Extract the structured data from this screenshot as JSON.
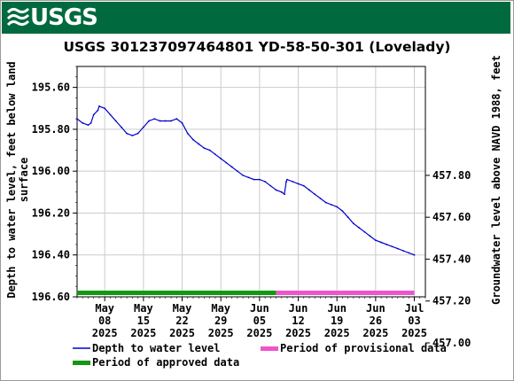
{
  "header": {
    "logo_text": "USGS",
    "logo_icon": "usgs-wave-icon",
    "banner_color": "#006a3e"
  },
  "chart_data": {
    "type": "line",
    "title": "USGS 301237097464801 YD-58-50-301 (Lovelady)",
    "ylabel_left": [
      "Depth to water level, feet below land",
      "surface"
    ],
    "ylabel_right": "Groundwater level above NAVD 1988, feet",
    "y_left_lim": [
      196.6,
      195.5
    ],
    "y_left_ticks": [
      "195.60",
      "195.80",
      "196.00",
      "196.20",
      "196.40",
      "196.60"
    ],
    "y_right_ticks": [
      "457.80",
      "457.60",
      "457.40",
      "457.20",
      "457.00"
    ],
    "x_ticks": [
      {
        "month": "May",
        "day": "08",
        "year": "2025"
      },
      {
        "month": "May",
        "day": "15",
        "year": "2025"
      },
      {
        "month": "May",
        "day": "22",
        "year": "2025"
      },
      {
        "month": "May",
        "day": "29",
        "year": "2025"
      },
      {
        "month": "Jun",
        "day": "05",
        "year": "2025"
      },
      {
        "month": "Jun",
        "day": "12",
        "year": "2025"
      },
      {
        "month": "Jun",
        "day": "19",
        "year": "2025"
      },
      {
        "month": "Jun",
        "day": "26",
        "year": "2025"
      },
      {
        "month": "Jul",
        "day": "03",
        "year": "2025"
      }
    ],
    "x_range": [
      "2025-05-03",
      "2025-07-05"
    ],
    "series": [
      {
        "name": "Depth to water level",
        "color": "#0000cc",
        "points": [
          [
            "2025-05-03",
            195.75
          ],
          [
            "2025-05-04",
            195.77
          ],
          [
            "2025-05-05",
            195.78
          ],
          [
            "2025-05-05T12",
            195.77
          ],
          [
            "2025-05-06",
            195.73
          ],
          [
            "2025-05-06T18",
            195.71
          ],
          [
            "2025-05-07",
            195.69
          ],
          [
            "2025-05-08",
            195.7
          ],
          [
            "2025-05-09",
            195.73
          ],
          [
            "2025-05-10",
            195.76
          ],
          [
            "2025-05-11",
            195.79
          ],
          [
            "2025-05-12",
            195.82
          ],
          [
            "2025-05-13",
            195.83
          ],
          [
            "2025-05-14",
            195.82
          ],
          [
            "2025-05-15",
            195.79
          ],
          [
            "2025-05-16",
            195.76
          ],
          [
            "2025-05-17",
            195.75
          ],
          [
            "2025-05-18",
            195.76
          ],
          [
            "2025-05-19",
            195.76
          ],
          [
            "2025-05-20",
            195.76
          ],
          [
            "2025-05-21",
            195.75
          ],
          [
            "2025-05-22",
            195.77
          ],
          [
            "2025-05-23",
            195.82
          ],
          [
            "2025-05-24",
            195.85
          ],
          [
            "2025-05-25",
            195.87
          ],
          [
            "2025-05-26",
            195.89
          ],
          [
            "2025-05-27",
            195.9
          ],
          [
            "2025-05-28",
            195.92
          ],
          [
            "2025-05-29",
            195.94
          ],
          [
            "2025-05-30",
            195.96
          ],
          [
            "2025-05-31",
            195.98
          ],
          [
            "2025-06-01",
            196.0
          ],
          [
            "2025-06-02",
            196.02
          ],
          [
            "2025-06-03",
            196.03
          ],
          [
            "2025-06-04",
            196.04
          ],
          [
            "2025-06-05",
            196.04
          ],
          [
            "2025-06-06",
            196.05
          ],
          [
            "2025-06-07",
            196.07
          ],
          [
            "2025-06-08",
            196.09
          ],
          [
            "2025-06-09",
            196.1
          ],
          [
            "2025-06-09T12",
            196.11
          ],
          [
            "2025-06-09T20",
            196.05
          ],
          [
            "2025-06-10",
            196.04
          ],
          [
            "2025-06-11",
            196.05
          ],
          [
            "2025-06-12",
            196.06
          ],
          [
            "2025-06-13",
            196.07
          ],
          [
            "2025-06-14",
            196.09
          ],
          [
            "2025-06-15",
            196.11
          ],
          [
            "2025-06-16",
            196.13
          ],
          [
            "2025-06-17",
            196.15
          ],
          [
            "2025-06-18",
            196.16
          ],
          [
            "2025-06-19",
            196.17
          ],
          [
            "2025-06-20",
            196.19
          ],
          [
            "2025-06-21",
            196.22
          ],
          [
            "2025-06-22",
            196.25
          ],
          [
            "2025-06-23",
            196.27
          ],
          [
            "2025-06-24",
            196.29
          ],
          [
            "2025-06-25",
            196.31
          ],
          [
            "2025-06-26",
            196.33
          ],
          [
            "2025-06-27",
            196.34
          ],
          [
            "2025-06-28",
            196.35
          ],
          [
            "2025-06-29",
            196.36
          ],
          [
            "2025-06-30",
            196.37
          ],
          [
            "2025-07-01",
            196.38
          ],
          [
            "2025-07-02",
            196.39
          ],
          [
            "2025-07-03",
            196.4
          ]
        ]
      }
    ],
    "periods": [
      {
        "name": "Period of approved data",
        "color": "#119911",
        "start": "2025-05-03",
        "end": "2025-06-08"
      },
      {
        "name": "Period of provisional data",
        "color": "#ee55cc",
        "start": "2025-06-08",
        "end": "2025-07-03"
      }
    ],
    "grid": true
  }
}
